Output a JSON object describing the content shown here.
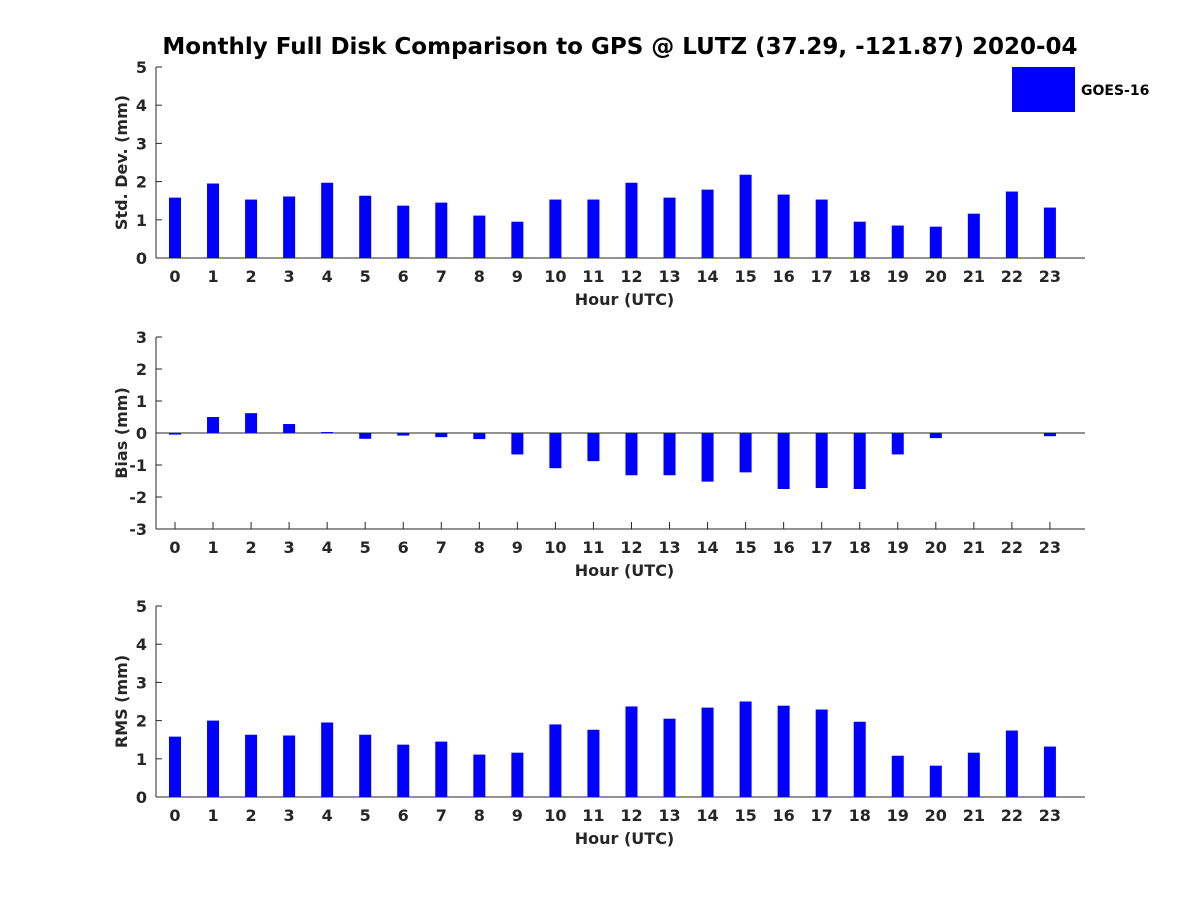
{
  "chart_data": {
    "title": "Monthly Full Disk Comparison to GPS @ LUTZ (37.29, -121.87) 2020-04",
    "legend": {
      "label": "GOES-16",
      "color": "#0000ff",
      "position": "top-right"
    },
    "panels": [
      {
        "type": "bar",
        "xlabel": "Hour (UTC)",
        "ylabel": "Std. Dev. (mm)",
        "ylim": [
          0,
          5
        ],
        "yticks": [
          "0",
          "1",
          "2",
          "3",
          "4",
          "5"
        ],
        "categories": [
          "0",
          "1",
          "2",
          "3",
          "4",
          "5",
          "6",
          "7",
          "8",
          "9",
          "10",
          "11",
          "12",
          "13",
          "14",
          "15",
          "16",
          "17",
          "18",
          "19",
          "20",
          "21",
          "22",
          "23"
        ],
        "series": [
          {
            "name": "GOES-16",
            "values": [
              1.58,
              1.95,
              1.53,
              1.61,
              1.97,
              1.63,
              1.37,
              1.45,
              1.11,
              0.95,
              1.53,
              1.53,
              1.97,
              1.58,
              1.79,
              2.18,
              1.66,
              1.53,
              0.95,
              0.85,
              0.82,
              1.16,
              1.74,
              1.32
            ]
          }
        ]
      },
      {
        "type": "bar",
        "xlabel": "Hour (UTC)",
        "ylabel": "Bias (mm)",
        "ylim": [
          -3,
          3
        ],
        "yticks": [
          "-3",
          "-2",
          "-1",
          "0",
          "1",
          "2",
          "3"
        ],
        "categories": [
          "0",
          "1",
          "2",
          "3",
          "4",
          "5",
          "6",
          "7",
          "8",
          "9",
          "10",
          "11",
          "12",
          "13",
          "14",
          "15",
          "16",
          "17",
          "18",
          "19",
          "20",
          "21",
          "22",
          "23"
        ],
        "series": [
          {
            "name": "GOES-16",
            "values": [
              -0.05,
              0.5,
              0.62,
              0.28,
              0.03,
              -0.18,
              -0.08,
              -0.13,
              -0.19,
              -0.67,
              -1.1,
              -0.88,
              -1.32,
              -1.32,
              -1.52,
              -1.23,
              -1.75,
              -1.72,
              -1.75,
              -0.67,
              -0.16,
              0.0,
              0.0,
              -0.1
            ]
          }
        ]
      },
      {
        "type": "bar",
        "xlabel": "Hour (UTC)",
        "ylabel": "RMS (mm)",
        "ylim": [
          0,
          5
        ],
        "yticks": [
          "0",
          "1",
          "2",
          "3",
          "4",
          "5"
        ],
        "categories": [
          "0",
          "1",
          "2",
          "3",
          "4",
          "5",
          "6",
          "7",
          "8",
          "9",
          "10",
          "11",
          "12",
          "13",
          "14",
          "15",
          "16",
          "17",
          "18",
          "19",
          "20",
          "21",
          "22",
          "23"
        ],
        "series": [
          {
            "name": "GOES-16",
            "values": [
              1.58,
              2.0,
              1.63,
              1.61,
              1.95,
              1.63,
              1.37,
              1.45,
              1.11,
              1.16,
              1.9,
              1.76,
              2.37,
              2.05,
              2.34,
              2.5,
              2.39,
              2.29,
              1.97,
              1.08,
              0.82,
              1.16,
              1.74,
              1.32
            ]
          }
        ]
      }
    ]
  }
}
